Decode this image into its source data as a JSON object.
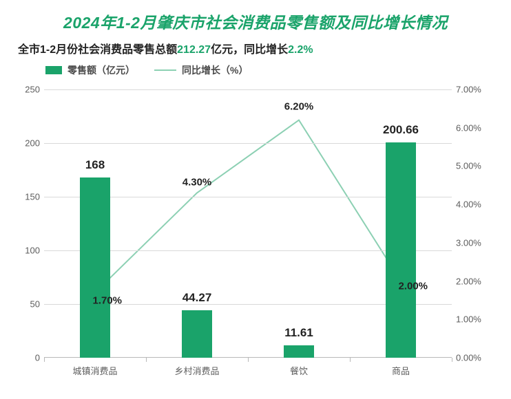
{
  "title": {
    "text": "2024年1-2月肇庆市社会消费品零售额及同比增长情况",
    "color": "#1aa36a",
    "fontsize": 23
  },
  "subtitle": {
    "prefix": "全市1-2月份社会消费品零售总额",
    "value1": "212.27",
    "mid": "亿元，同比增长",
    "value2": "2.2%",
    "text_color": "#222222",
    "highlight_color": "#1aa36a",
    "fontsize": 16
  },
  "legend": {
    "bar_label": "零售额（亿元）",
    "line_label": "同比增长（%）",
    "bar_color": "#1aa36a",
    "line_color": "#8cd0b3",
    "text_color": "#4a4a4a",
    "fontsize": 14
  },
  "chart": {
    "type": "bar+line",
    "categories": [
      "城镇消费品",
      "乡村消费品",
      "餐饮",
      "商品"
    ],
    "bars": {
      "values": [
        168,
        44.27,
        11.61,
        200.66
      ],
      "labels": [
        "168",
        "44.27",
        "11.61",
        "200.66"
      ],
      "color": "#1aa36a",
      "width_frac": 0.3
    },
    "line": {
      "values": [
        1.7,
        4.3,
        6.2,
        2.0
      ],
      "labels": [
        "1.70%",
        "4.30%",
        "6.20%",
        "2.00%"
      ],
      "color": "#8cd0b3",
      "stroke_width": 2
    },
    "y_left": {
      "min": 0,
      "max": 250,
      "step": 50,
      "ticks": [
        0,
        50,
        100,
        150,
        200,
        250
      ]
    },
    "y_right": {
      "min": 0,
      "max": 7,
      "step": 1,
      "fmt_suffix": "%",
      "decimals": 2,
      "ticks": [
        0,
        1,
        2,
        3,
        4,
        5,
        6,
        7
      ]
    },
    "grid_color": "#d9d9d9",
    "axis_color": "#b8b8b8",
    "label_color": "#5c5c5c",
    "background": "#ffffff",
    "bar_label_fontsize": 17,
    "line_label_fontsize": 15,
    "axis_fontsize": 13
  }
}
